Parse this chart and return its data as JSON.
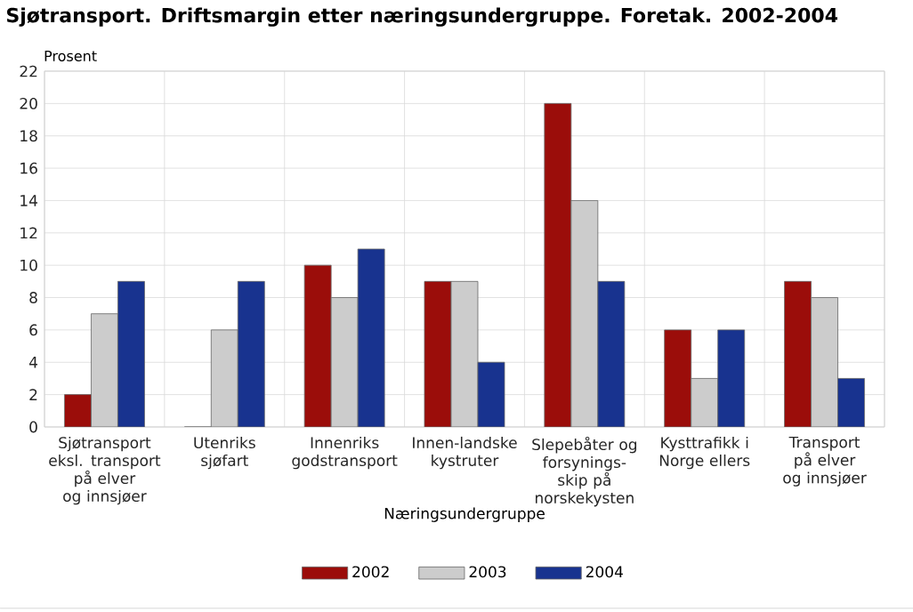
{
  "chart_data": {
    "type": "bar",
    "title": "Sjøtransport. Driftsmargin etter næringsundergruppe. Foretak. 2002-2004",
    "xlabel": "Næringsundergruppe",
    "ylabel": "Prosent",
    "categories": [
      "Sjøtransport eksl. transport på elver og innsjøer",
      "Utenriks sjøfart",
      "Innenriks godstransport",
      "Innen-landske kystruter",
      "Slepebåter og forsynings-skip på norskekysten",
      "Kysttrafikk i Norge ellers",
      "Transport på elver og innsjøer"
    ],
    "series": [
      {
        "name": "2002",
        "color": "#9b0d0a",
        "values": [
          2,
          0,
          10,
          9,
          20,
          6,
          9
        ]
      },
      {
        "name": "2003",
        "color": "#cccccc",
        "values": [
          7,
          6,
          8,
          9,
          14,
          3,
          8
        ]
      },
      {
        "name": "2004",
        "color": "#18338f",
        "values": [
          9,
          9,
          11,
          4,
          9,
          6,
          3
        ]
      }
    ],
    "ylim": [
      0,
      22
    ],
    "yticks": [
      0,
      2,
      4,
      6,
      8,
      10,
      12,
      14,
      16,
      18,
      20,
      22
    ],
    "grid": true,
    "legend": "bottom"
  }
}
